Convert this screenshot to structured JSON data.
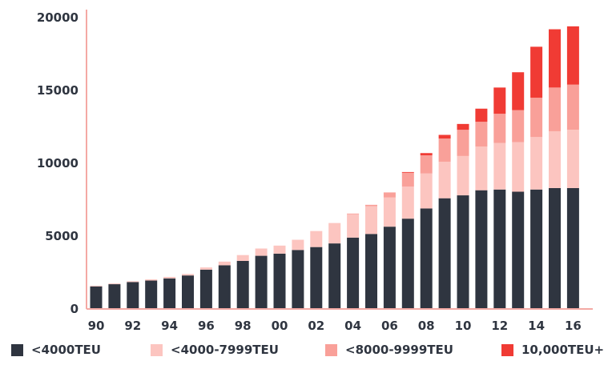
{
  "chart_data": {
    "type": "bar",
    "stacked": true,
    "title": "",
    "xlabel": "",
    "ylabel": "",
    "ylim": [
      0,
      20000
    ],
    "yticks": [
      0,
      5000,
      10000,
      15000,
      20000
    ],
    "x": [
      "90",
      "91",
      "92",
      "93",
      "94",
      "95",
      "96",
      "97",
      "98",
      "99",
      "00",
      "01",
      "02",
      "03",
      "04",
      "05",
      "06",
      "07",
      "08",
      "09",
      "10",
      "11",
      "12",
      "13",
      "14",
      "15",
      "16"
    ],
    "xtick_labels": [
      "90",
      "92",
      "94",
      "96",
      "98",
      "00",
      "02",
      "04",
      "06",
      "08",
      "10",
      "12",
      "14",
      "16"
    ],
    "grid": false,
    "legend_position": "bottom",
    "series": [
      {
        "name": "<4000TEU",
        "color": "#2f3540",
        "values": [
          1550,
          1700,
          1850,
          1950,
          2100,
          2300,
          2700,
          3000,
          3300,
          3650,
          3800,
          4050,
          4250,
          4500,
          4900,
          5150,
          5650,
          6200,
          6900,
          7600,
          7800,
          8150,
          8200,
          8050,
          8200,
          8300,
          8300
        ]
      },
      {
        "name": "<4000-7999TEU",
        "color": "#fcc5c0",
        "values": [
          50,
          50,
          50,
          80,
          100,
          100,
          150,
          250,
          400,
          500,
          550,
          700,
          1100,
          1400,
          1600,
          1900,
          2000,
          2200,
          2400,
          2500,
          2700,
          3000,
          3200,
          3400,
          3600,
          3900,
          4000
        ]
      },
      {
        "name": "<8000-9999TEU",
        "color": "#f9a099",
        "values": [
          0,
          0,
          0,
          0,
          0,
          0,
          0,
          0,
          0,
          0,
          0,
          0,
          0,
          0,
          50,
          100,
          350,
          950,
          1250,
          1600,
          1800,
          1700,
          2000,
          2200,
          2700,
          3000,
          3100
        ]
      },
      {
        "name": "10,000TEU+",
        "color": "#f03b34",
        "values": [
          0,
          0,
          0,
          0,
          0,
          0,
          0,
          0,
          0,
          0,
          0,
          0,
          0,
          0,
          0,
          0,
          0,
          50,
          150,
          250,
          400,
          900,
          1800,
          2600,
          3500,
          4000,
          4000
        ]
      }
    ]
  }
}
